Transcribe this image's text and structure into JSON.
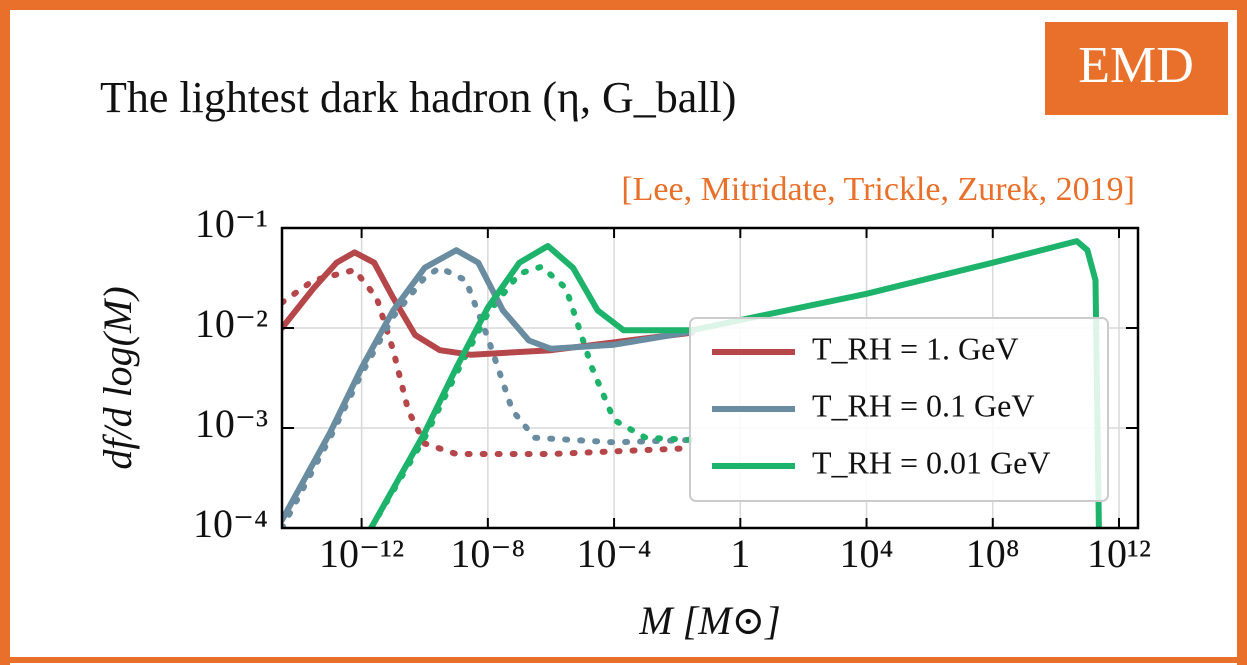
{
  "badge": "EMD",
  "chart_data": {
    "type": "line",
    "title": "The lightest dark hadron (η, G_ball)",
    "citation": "[Lee, Mitridate, Trickle, Zurek, 2019]",
    "xlabel": "M [M⊙]",
    "ylabel": "df/d log(M)",
    "log_x": true,
    "log_y": true,
    "grid": true,
    "legend": "lower right",
    "xlim": [
      3e-15,
      4000000000000.0
    ],
    "ylim": [
      0.0001,
      0.1
    ],
    "xticks": [
      {
        "value": 1e-12,
        "label": "10⁻¹²"
      },
      {
        "value": 1e-08,
        "label": "10⁻⁸"
      },
      {
        "value": 0.0001,
        "label": "10⁻⁴"
      },
      1,
      {
        "value": 10000,
        "label": "10⁴"
      },
      {
        "value": 100000000,
        "label": "10⁸"
      },
      {
        "value": 1000000000000.0,
        "label": "10¹²"
      }
    ],
    "yticks": [
      {
        "value": 0.0001,
        "label": "10⁻⁴"
      },
      {
        "value": 0.001,
        "label": "10⁻³"
      },
      {
        "value": 0.01,
        "label": "10⁻²"
      },
      {
        "value": 0.1,
        "label": "10⁻¹"
      }
    ],
    "series": [
      {
        "name": "T_RH = 1. GeV",
        "color": "#b5474b",
        "dotted": false,
        "x": [
          3e-15,
          3e-14,
          1.6e-13,
          6e-13,
          2.5e-12,
          1e-11,
          5e-11,
          3e-10,
          3e-09,
          1e-06,
          0.0001,
          0.03
        ],
        "values": [
          0.01,
          0.025,
          0.045,
          0.057,
          0.045,
          0.02,
          0.0085,
          0.006,
          0.0054,
          0.006,
          0.0072,
          0.009
        ]
      },
      {
        "name": "T_RH = 0.1 GeV",
        "color": "#6a8ca0",
        "dotted": false,
        "x": [
          3e-15,
          1e-13,
          1e-12,
          1e-11,
          1e-10,
          1e-09,
          5e-09,
          3e-08,
          2e-07,
          1e-06,
          0.0001,
          0.03
        ],
        "values": [
          0.00012,
          0.0009,
          0.004,
          0.015,
          0.04,
          0.06,
          0.045,
          0.015,
          0.0075,
          0.0062,
          0.0068,
          0.0092
        ]
      },
      {
        "name": "T_RH = 0.01 GeV",
        "color": "#1db36b",
        "dotted": false,
        "x": [
          2e-12,
          1e-10,
          1e-09,
          1e-08,
          1e-07,
          8e-07,
          5e-06,
          3e-05,
          0.0002,
          0.03,
          1,
          10000,
          100000000,
          46000000000,
          100000000000,
          180000000000,
          230000000000
        ],
        "values": [
          0.0001,
          0.0009,
          0.004,
          0.016,
          0.045,
          0.066,
          0.04,
          0.015,
          0.0095,
          0.0095,
          0.012,
          0.022,
          0.045,
          0.074,
          0.06,
          0.03,
          0.0001
        ]
      },
      {
        "color": "#b5474b",
        "dotted": true,
        "x": [
          3e-15,
          3e-14,
          6e-13,
          3e-12,
          1e-11,
          3e-11,
          1e-10,
          1e-09,
          1e-06,
          0.03
        ],
        "values": [
          0.018,
          0.03,
          0.038,
          0.02,
          0.006,
          0.0015,
          0.0007,
          0.00055,
          0.00055,
          0.00063
        ]
      },
      {
        "color": "#6a8ca0",
        "dotted": true,
        "x": [
          3e-15,
          1e-13,
          1e-12,
          1e-11,
          1e-10,
          3e-10,
          2e-09,
          1e-08,
          6e-08,
          3e-07,
          0.0001,
          0.03
        ],
        "values": [
          0.0001,
          0.0008,
          0.0035,
          0.013,
          0.032,
          0.04,
          0.03,
          0.008,
          0.0015,
          0.0008,
          0.00072,
          0.00076
        ]
      },
      {
        "color": "#1db36b",
        "dotted": true,
        "x": [
          2e-12,
          1e-10,
          1e-09,
          1e-08,
          1e-07,
          5e-07,
          3e-06,
          2e-05,
          0.0001,
          0.001,
          0.03
        ],
        "values": [
          0.0001,
          0.0008,
          0.0035,
          0.014,
          0.035,
          0.041,
          0.025,
          0.004,
          0.0012,
          0.0008,
          0.00076
        ]
      }
    ]
  }
}
